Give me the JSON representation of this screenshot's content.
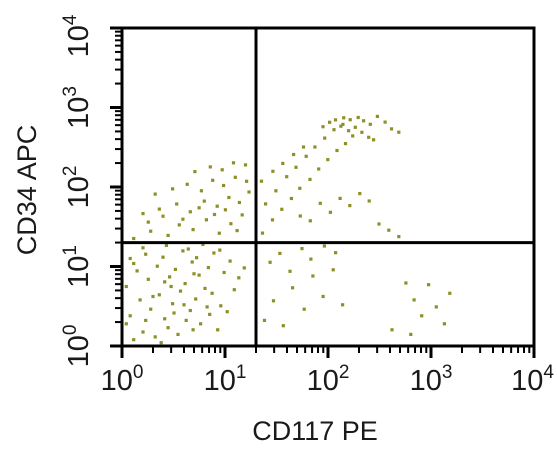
{
  "chart_data": {
    "type": "scatter",
    "xlabel": "CD117 PE",
    "ylabel": "CD34 APC",
    "x_scale": "log",
    "y_scale": "log",
    "xlim": [
      1,
      10000
    ],
    "ylim": [
      1,
      10000
    ],
    "x_ticks": [
      {
        "base": "10",
        "exp": "0"
      },
      {
        "base": "10",
        "exp": "1"
      },
      {
        "base": "10",
        "exp": "2"
      },
      {
        "base": "10",
        "exp": "3"
      },
      {
        "base": "10",
        "exp": "4"
      }
    ],
    "y_ticks": [
      {
        "base": "10",
        "exp": "0"
      },
      {
        "base": "10",
        "exp": "1"
      },
      {
        "base": "10",
        "exp": "2"
      },
      {
        "base": "10",
        "exp": "3"
      },
      {
        "base": "10",
        "exp": "4"
      }
    ],
    "gates": {
      "x": 20,
      "y": 20
    },
    "point_color": "#8f8f28",
    "points": [
      [
        1.3,
        1.2
      ],
      [
        1.6,
        1.5
      ],
      [
        2.1,
        1.3
      ],
      [
        2.8,
        1.7
      ],
      [
        3.5,
        1.4
      ],
      [
        4.2,
        2.1
      ],
      [
        1.2,
        2.4
      ],
      [
        1.9,
        2.9
      ],
      [
        2.6,
        2.2
      ],
      [
        3.1,
        3.4
      ],
      [
        4.6,
        2.8
      ],
      [
        5.8,
        1.9
      ],
      [
        7.1,
        2.5
      ],
      [
        8.5,
        1.6
      ],
      [
        1.5,
        3.8
      ],
      [
        2.3,
        4.4
      ],
      [
        3.7,
        4.9
      ],
      [
        5.2,
        3.9
      ],
      [
        6.4,
        5.3
      ],
      [
        9.1,
        3.2
      ],
      [
        1.1,
        5.6
      ],
      [
        1.8,
        6.9
      ],
      [
        2.9,
        7.4
      ],
      [
        4.1,
        6.1
      ],
      [
        5.6,
        7.8
      ],
      [
        7.5,
        4.6
      ],
      [
        10.5,
        2.7
      ],
      [
        12.3,
        5.1
      ],
      [
        1.4,
        8.8
      ],
      [
        2.2,
        10.1
      ],
      [
        3.3,
        9.2
      ],
      [
        4.8,
        11.4
      ],
      [
        6.9,
        9.7
      ],
      [
        9.8,
        8.4
      ],
      [
        13.6,
        7.2
      ],
      [
        1.2,
        12.6
      ],
      [
        1.7,
        14.3
      ],
      [
        2.5,
        13.1
      ],
      [
        3.9,
        15.7
      ],
      [
        5.3,
        12.9
      ],
      [
        7.8,
        14.8
      ],
      [
        11.2,
        11.7
      ],
      [
        15.4,
        9.6
      ],
      [
        1.6,
        17.2
      ],
      [
        2.7,
        18.4
      ],
      [
        4.4,
        16.6
      ],
      [
        6.1,
        18.9
      ],
      [
        8.9,
        16.1
      ],
      [
        1.1,
        1.9
      ],
      [
        2.4,
        1.1
      ],
      [
        3.2,
        2.6
      ],
      [
        4.9,
        1.6
      ],
      [
        6.7,
        3.1
      ],
      [
        1.7,
        2.1
      ],
      [
        2.0,
        4.2
      ],
      [
        3.0,
        5.6
      ],
      [
        4.0,
        3.3
      ],
      [
        5.0,
        8.1
      ],
      [
        1.3,
        10.9
      ],
      [
        2.6,
        6.4
      ],
      [
        1.3,
        22.5
      ],
      [
        1.9,
        27.8
      ],
      [
        2.8,
        24.6
      ],
      [
        3.6,
        33.4
      ],
      [
        4.9,
        29.1
      ],
      [
        6.6,
        38.7
      ],
      [
        8.8,
        26.2
      ],
      [
        11.4,
        34.5
      ],
      [
        14.7,
        44.6
      ],
      [
        1.6,
        46.3
      ],
      [
        2.3,
        52.8
      ],
      [
        3.4,
        61.2
      ],
      [
        4.6,
        48.7
      ],
      [
        6.3,
        66.4
      ],
      [
        8.4,
        57.3
      ],
      [
        10.9,
        73.8
      ],
      [
        13.8,
        63.9
      ],
      [
        17.1,
        86.6
      ],
      [
        2.1,
        81.4
      ],
      [
        3.1,
        94.6
      ],
      [
        4.3,
        108.2
      ],
      [
        5.9,
        89.7
      ],
      [
        7.6,
        121.3
      ],
      [
        9.7,
        104.4
      ],
      [
        12.6,
        132.5
      ],
      [
        16.2,
        117.8
      ],
      [
        5.1,
        156.2
      ],
      [
        7.2,
        178.9
      ],
      [
        9.4,
        164.7
      ],
      [
        12.1,
        201.4
      ],
      [
        15.8,
        189.6
      ],
      [
        1.8,
        36.2
      ],
      [
        2.5,
        42.9
      ],
      [
        3.9,
        39.4
      ],
      [
        5.6,
        54.8
      ],
      [
        7.9,
        45.1
      ],
      [
        10.1,
        51.6
      ],
      [
        13.1,
        28.3
      ],
      [
        24.2,
        2.1
      ],
      [
        29.6,
        3.7
      ],
      [
        36.8,
        1.8
      ],
      [
        45.3,
        5.4
      ],
      [
        58.7,
        2.9
      ],
      [
        71.4,
        7.6
      ],
      [
        89.6,
        4.2
      ],
      [
        112.4,
        9.1
      ],
      [
        138.7,
        3.3
      ],
      [
        27.4,
        11.3
      ],
      [
        34.1,
        14.6
      ],
      [
        42.8,
        8.7
      ],
      [
        55.9,
        16.8
      ],
      [
        68.2,
        12.4
      ],
      [
        92.3,
        18.1
      ],
      [
        118.6,
        14.9
      ],
      [
        23.1,
        26.3
      ],
      [
        28.9,
        38.6
      ],
      [
        35.6,
        52.4
      ],
      [
        44.1,
        71.6
      ],
      [
        53.2,
        96.4
      ],
      [
        66.8,
        124.7
      ],
      [
        81.3,
        168.2
      ],
      [
        99.6,
        221.4
      ],
      [
        122.4,
        287.6
      ],
      [
        147.8,
        351.2
      ],
      [
        173.6,
        438.7
      ],
      [
        24.8,
        61.3
      ],
      [
        31.2,
        89.5
      ],
      [
        39.7,
        134.6
      ],
      [
        48.9,
        176.8
      ],
      [
        61.4,
        243.3
      ],
      [
        74.6,
        318.4
      ],
      [
        92.8,
        412.6
      ],
      [
        114.3,
        526.4
      ],
      [
        139.6,
        613.8
      ],
      [
        164.2,
        702.1
      ],
      [
        196.4,
        748.6
      ],
      [
        221.8,
        681.2
      ],
      [
        257.3,
        614.5
      ],
      [
        301.6,
        772.4
      ],
      [
        358.2,
        654.3
      ],
      [
        413.4,
        538.6
      ],
      [
        486.7,
        489.2
      ],
      [
        142.1,
        742.6
      ],
      [
        118.3,
        698.4
      ],
      [
        89.4,
        573.1
      ],
      [
        103.7,
        651.8
      ],
      [
        133.4,
        582.6
      ],
      [
        158.6,
        511.3
      ],
      [
        184.2,
        563.9
      ],
      [
        213.6,
        487.6
      ],
      [
        248.4,
        421.8
      ],
      [
        276.9,
        392.4
      ],
      [
        57.8,
        318.6
      ],
      [
        46.3,
        256.4
      ],
      [
        36.4,
        198.2
      ],
      [
        29.2,
        157.8
      ],
      [
        22.6,
        118.4
      ],
      [
        53.8,
        43.2
      ],
      [
        67.3,
        37.6
      ],
      [
        84.1,
        62.4
      ],
      [
        105.6,
        48.1
      ],
      [
        131.2,
        71.9
      ],
      [
        162.7,
        58.3
      ],
      [
        203.4,
        82.6
      ],
      [
        251.3,
        66.7
      ],
      [
        312.6,
        34.2
      ],
      [
        389.4,
        28.6
      ],
      [
        486.3,
        23.8
      ],
      [
        571.2,
        6.2
      ],
      [
        684.6,
        3.8
      ],
      [
        812.3,
        2.4
      ],
      [
        947.4,
        5.9
      ],
      [
        1124.6,
        3.1
      ],
      [
        1348.2,
        1.9
      ],
      [
        1521.4,
        4.6
      ],
      [
        636.4,
        1.4
      ],
      [
        418.6,
        1.6
      ]
    ]
  }
}
